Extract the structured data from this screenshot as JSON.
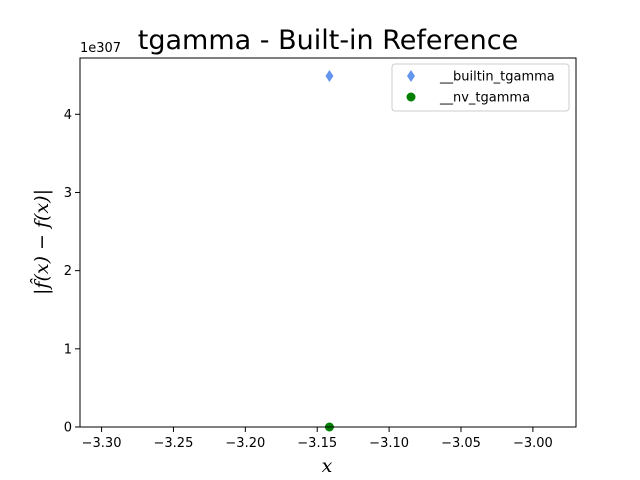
{
  "chart_data": {
    "type": "scatter",
    "title": "tgamma - Built-in Reference",
    "xlabel": "x",
    "ylabel": "|f̂(x) − f(x)|",
    "y_offset_label": "1e307",
    "xlim": [
      -3.315,
      -2.97
    ],
    "ylim": [
      0,
      4.72
    ],
    "x_ticks": [
      -3.3,
      -3.25,
      -3.2,
      -3.15,
      -3.1,
      -3.05,
      -3.0
    ],
    "x_tick_labels": [
      "−3.30",
      "−3.25",
      "−3.20",
      "−3.15",
      "−3.10",
      "−3.05",
      "−3.00"
    ],
    "y_ticks": [
      0,
      1,
      2,
      3,
      4
    ],
    "y_tick_labels": [
      "0",
      "1",
      "2",
      "3",
      "4"
    ],
    "grid": false,
    "legend_position": "top-right",
    "series": [
      {
        "name": "__builtin_tgamma",
        "marker": "diamond",
        "color": "#6495ED",
        "points": [
          {
            "x": -3.1415,
            "y": 4.49
          }
        ]
      },
      {
        "name": "__nv_tgamma",
        "marker": "circle",
        "color": "#008000",
        "points": [
          {
            "x": -3.1415,
            "y": 0
          }
        ]
      }
    ]
  }
}
